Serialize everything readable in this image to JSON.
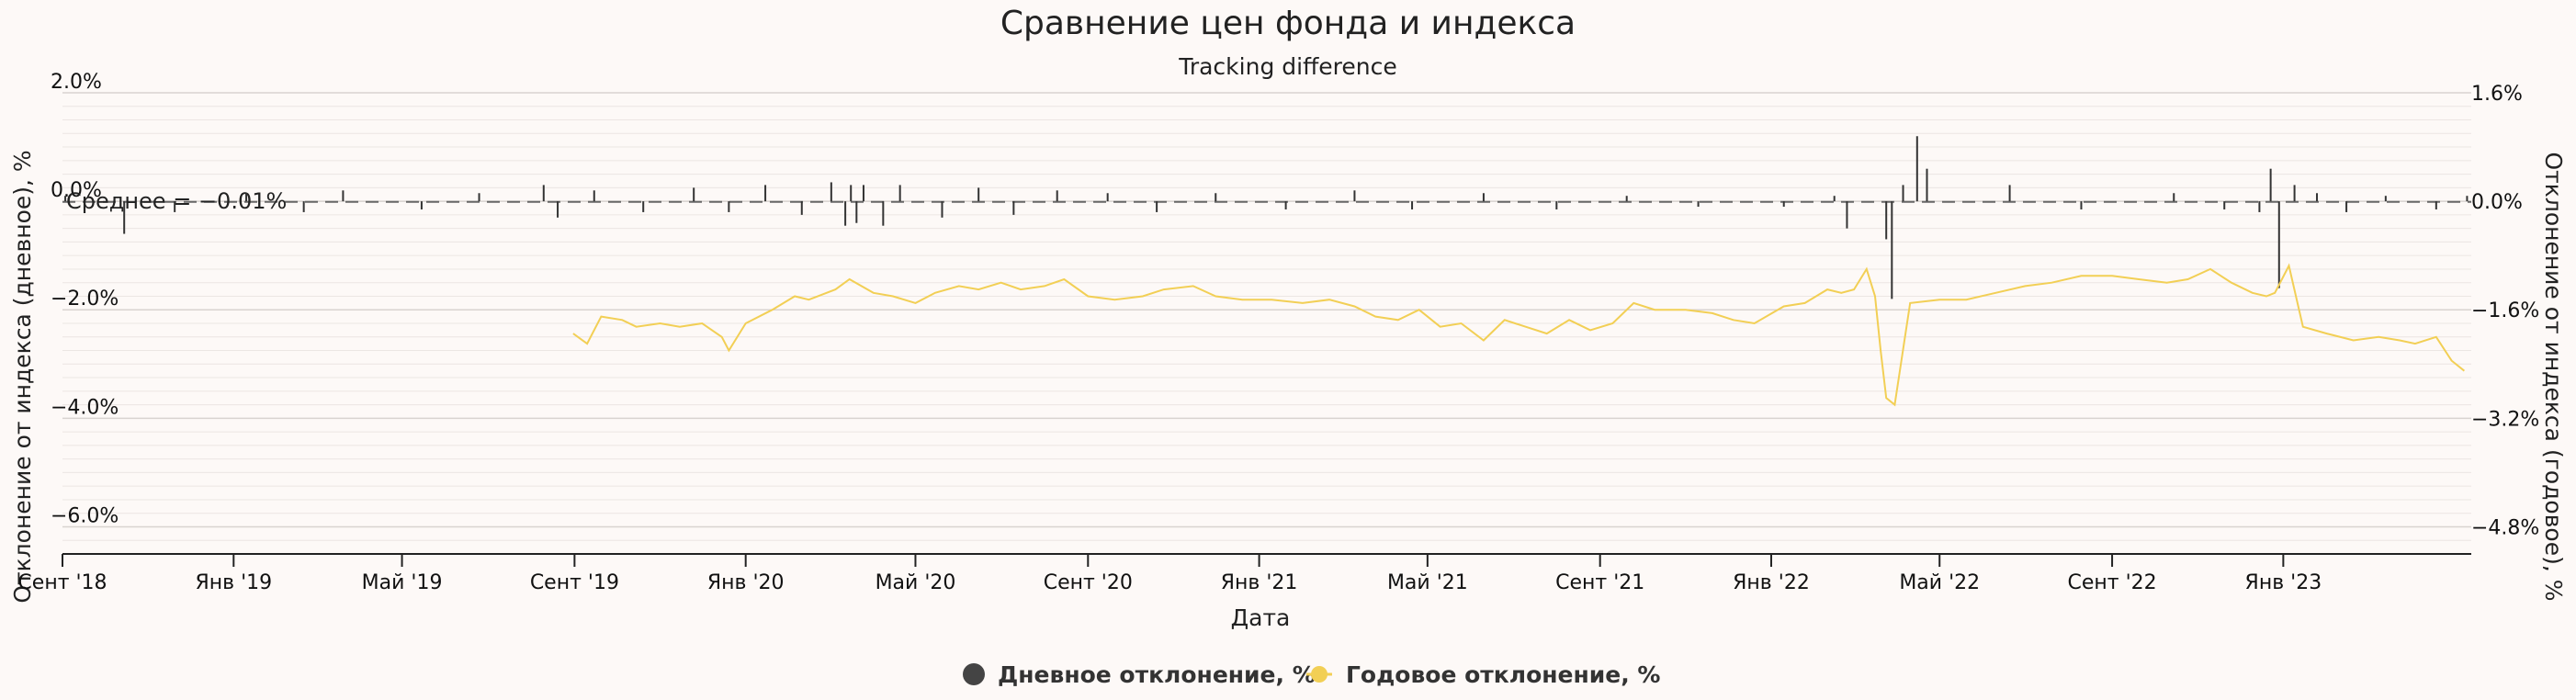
{
  "chart_data": {
    "type": "line",
    "title": "Сравнение цен фонда и индекса",
    "subtitle": "Tracking difference",
    "xlabel": "Дата",
    "ylabel_left": "Отклонение от индекса (дневное), %",
    "ylabel_right": "Отклонение от индекса (годовое), %",
    "x_range": [
      "2018-09-01",
      "2023-05-15"
    ],
    "x_ticks": [
      {
        "date": "2018-09-01",
        "label": "Сент '18"
      },
      {
        "date": "2019-01-01",
        "label": "Янв '19"
      },
      {
        "date": "2019-05-01",
        "label": "Май '19"
      },
      {
        "date": "2019-09-01",
        "label": "Сент '19"
      },
      {
        "date": "2020-01-01",
        "label": "Янв '20"
      },
      {
        "date": "2020-05-01",
        "label": "Май '20"
      },
      {
        "date": "2020-09-01",
        "label": "Сент '20"
      },
      {
        "date": "2021-01-01",
        "label": "Янв '21"
      },
      {
        "date": "2021-05-01",
        "label": "Май '21"
      },
      {
        "date": "2021-09-01",
        "label": "Сент '21"
      },
      {
        "date": "2022-01-01",
        "label": "Янв '22"
      },
      {
        "date": "2022-05-01",
        "label": "Май '22"
      },
      {
        "date": "2022-09-01",
        "label": "Сент '22"
      },
      {
        "date": "2023-01-01",
        "label": "Янв '23"
      }
    ],
    "y_left": {
      "range": [
        -6.5,
        2.0
      ],
      "ticks": [
        {
          "value": 2.0,
          "label": "2.0%"
        },
        {
          "value": 0.0,
          "label": "0.0%"
        },
        {
          "value": -2.0,
          "label": "−2.0%"
        },
        {
          "value": -4.0,
          "label": "−4.0%"
        },
        {
          "value": -6.0,
          "label": "−6.0%"
        }
      ]
    },
    "y_right": {
      "range": [
        -5.2,
        1.6
      ],
      "ticks": [
        {
          "value": 1.6,
          "label": "1.6%"
        },
        {
          "value": 0.0,
          "label": "0.0%"
        },
        {
          "value": -1.6,
          "label": "−1.6%"
        },
        {
          "value": -3.2,
          "label": "−3.2%"
        },
        {
          "value": -4.8,
          "label": "−4.8%"
        }
      ]
    },
    "grid": true,
    "mean_line": {
      "value": -0.01,
      "label": "Среднее = −0.01%"
    },
    "legend_position": "bottom",
    "series": [
      {
        "name": "Дневное отклонение, %",
        "type": "column",
        "axis": "left",
        "color": "#333333",
        "x": [
          "2018-09-03",
          "2018-10-15",
          "2018-11-20",
          "2019-01-10",
          "2019-02-20",
          "2019-03-20",
          "2019-05-15",
          "2019-06-25",
          "2019-08-10",
          "2019-08-20",
          "2019-09-15",
          "2019-10-20",
          "2019-11-25",
          "2019-12-20",
          "2020-01-15",
          "2020-02-10",
          "2020-03-02",
          "2020-03-12",
          "2020-03-16",
          "2020-03-20",
          "2020-03-25",
          "2020-04-08",
          "2020-04-20",
          "2020-05-20",
          "2020-06-15",
          "2020-07-10",
          "2020-08-10",
          "2020-09-15",
          "2020-10-20",
          "2020-12-01",
          "2021-01-20",
          "2021-03-10",
          "2021-04-20",
          "2021-06-10",
          "2021-08-01",
          "2021-09-20",
          "2021-11-10",
          "2022-01-10",
          "2022-02-15",
          "2022-02-24",
          "2022-03-24",
          "2022-03-28",
          "2022-04-05",
          "2022-04-15",
          "2022-04-22",
          "2022-06-20",
          "2022-08-10",
          "2022-10-15",
          "2022-11-20",
          "2022-12-15",
          "2022-12-23",
          "2022-12-29",
          "2023-01-09",
          "2023-01-25",
          "2023-02-15",
          "2023-03-15",
          "2023-04-20",
          "2023-05-12"
        ],
        "values": [
          0.1,
          -0.6,
          -0.2,
          0.15,
          -0.2,
          0.2,
          -0.15,
          0.15,
          0.3,
          -0.3,
          0.2,
          -0.2,
          0.25,
          -0.2,
          0.3,
          -0.25,
          0.35,
          -0.45,
          0.3,
          -0.4,
          0.3,
          -0.45,
          0.3,
          -0.3,
          0.25,
          -0.25,
          0.2,
          0.15,
          -0.2,
          0.15,
          -0.15,
          0.2,
          -0.15,
          0.15,
          -0.15,
          0.1,
          -0.1,
          -0.1,
          0.1,
          -0.5,
          -0.7,
          -1.8,
          0.3,
          1.2,
          0.6,
          0.3,
          -0.15,
          0.15,
          -0.15,
          -0.2,
          0.6,
          -1.6,
          0.3,
          0.15,
          -0.2,
          0.1,
          -0.15,
          0.1
        ]
      },
      {
        "name": "Годовое отклонение, %",
        "type": "line",
        "axis": "right",
        "color": "#f2cf55",
        "x": [
          "2019-08-31",
          "2019-09-10",
          "2019-09-20",
          "2019-10-05",
          "2019-10-15",
          "2019-11-01",
          "2019-11-15",
          "2019-12-01",
          "2019-12-15",
          "2019-12-20",
          "2020-01-01",
          "2020-01-20",
          "2020-02-05",
          "2020-02-15",
          "2020-03-05",
          "2020-03-15",
          "2020-04-01",
          "2020-04-15",
          "2020-05-01",
          "2020-05-15",
          "2020-06-01",
          "2020-06-15",
          "2020-07-01",
          "2020-07-15",
          "2020-08-01",
          "2020-08-15",
          "2020-09-01",
          "2020-09-20",
          "2020-10-10",
          "2020-10-25",
          "2020-11-15",
          "2020-12-01",
          "2020-12-20",
          "2021-01-10",
          "2021-02-01",
          "2021-02-20",
          "2021-03-10",
          "2021-03-25",
          "2021-04-10",
          "2021-04-25",
          "2021-05-10",
          "2021-05-25",
          "2021-06-10",
          "2021-06-25",
          "2021-07-10",
          "2021-07-25",
          "2021-08-10",
          "2021-08-25",
          "2021-09-10",
          "2021-09-25",
          "2021-10-10",
          "2021-11-01",
          "2021-11-20",
          "2021-12-05",
          "2021-12-20",
          "2022-01-10",
          "2022-01-25",
          "2022-02-10",
          "2022-02-20",
          "2022-03-01",
          "2022-03-10",
          "2022-03-16",
          "2022-03-20",
          "2022-03-24",
          "2022-03-30",
          "2022-04-10",
          "2022-05-01",
          "2022-05-20",
          "2022-06-10",
          "2022-07-01",
          "2022-07-20",
          "2022-08-10",
          "2022-09-01",
          "2022-09-20",
          "2022-10-10",
          "2022-10-25",
          "2022-11-10",
          "2022-11-25",
          "2022-12-10",
          "2022-12-20",
          "2022-12-26",
          "2023-01-05",
          "2023-01-15",
          "2023-02-01",
          "2023-02-20",
          "2023-03-10",
          "2023-03-25",
          "2023-04-05",
          "2023-04-20",
          "2023-05-01",
          "2023-05-10"
        ],
        "values": [
          -1.95,
          -2.1,
          -1.7,
          -1.75,
          -1.85,
          -1.8,
          -1.85,
          -1.8,
          -2.0,
          -2.2,
          -1.8,
          -1.6,
          -1.4,
          -1.45,
          -1.3,
          -1.15,
          -1.35,
          -1.4,
          -1.5,
          -1.35,
          -1.25,
          -1.3,
          -1.2,
          -1.3,
          -1.25,
          -1.15,
          -1.4,
          -1.45,
          -1.4,
          -1.3,
          -1.25,
          -1.4,
          -1.45,
          -1.45,
          -1.5,
          -1.45,
          -1.55,
          -1.7,
          -1.75,
          -1.6,
          -1.85,
          -1.8,
          -2.05,
          -1.75,
          -1.85,
          -1.95,
          -1.75,
          -1.9,
          -1.8,
          -1.5,
          -1.6,
          -1.6,
          -1.65,
          -1.75,
          -1.8,
          -1.55,
          -1.5,
          -1.3,
          -1.35,
          -1.3,
          -1.0,
          -1.4,
          -2.2,
          -2.9,
          -3.0,
          -1.5,
          -1.45,
          -1.45,
          -1.35,
          -1.25,
          -1.2,
          -1.1,
          -1.1,
          -1.15,
          -1.2,
          -1.15,
          -1.0,
          -1.2,
          -1.35,
          -1.4,
          -1.35,
          -0.95,
          -1.85,
          -1.95,
          -2.05,
          -2.0,
          -2.05,
          -2.1,
          -2.0,
          -2.35,
          -2.5
        ]
      }
    ]
  }
}
